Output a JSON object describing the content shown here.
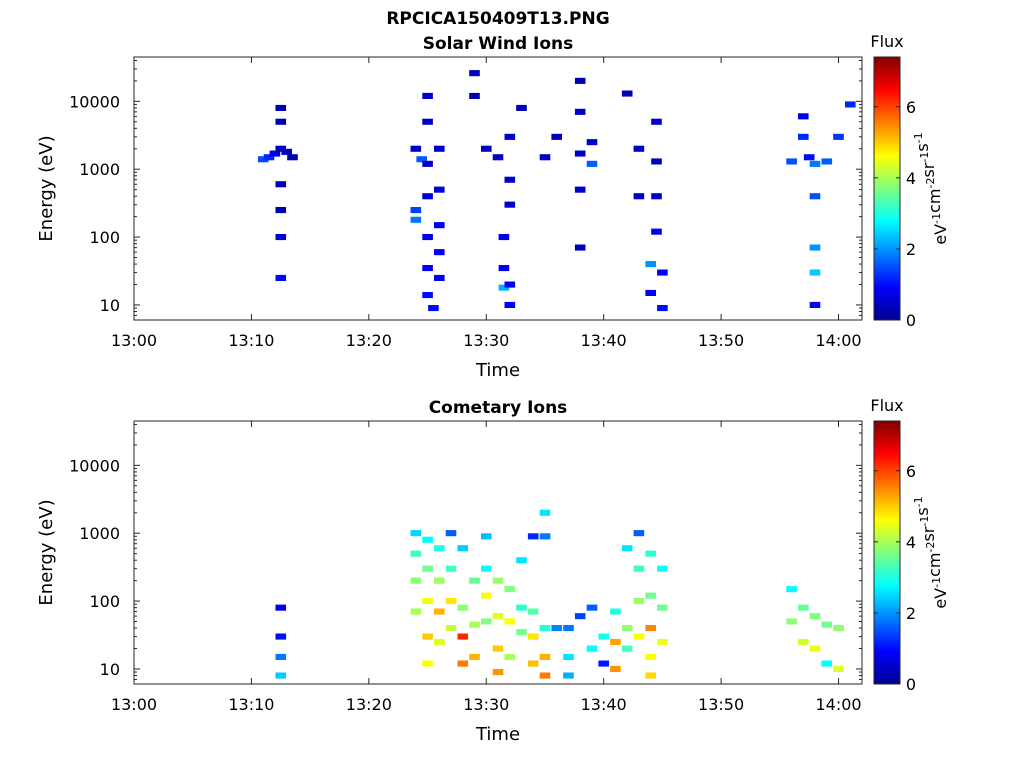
{
  "figure": {
    "title": "RPCICA150409T13.PNG"
  },
  "colormap": {
    "name": "jet",
    "colors": [
      "#00008f",
      "#0000ff",
      "#00ffff",
      "#ffff00",
      "#ff0000",
      "#800000"
    ]
  },
  "chart_data": [
    {
      "type": "heatmap",
      "title": "Solar Wind Ions",
      "xlabel": "Time",
      "ylabel": "Energy (eV)",
      "yscale": "log",
      "ylim": [
        6,
        45000
      ],
      "xlim": [
        "13:00",
        "14:02"
      ],
      "xticks": [
        "13:00",
        "13:10",
        "13:20",
        "13:30",
        "13:40",
        "13:50",
        "14:00"
      ],
      "yticks": [
        "10",
        "100",
        "1000",
        "10000"
      ],
      "colorbar": {
        "title": "Flux",
        "label": "eV-1 cm-2 sr-1 s-1",
        "ticks": [
          "0",
          "2",
          "4",
          "6"
        ],
        "range": [
          0,
          7.4
        ]
      },
      "cells": [
        [
          "13:11",
          1400,
          1.5
        ],
        [
          "13:11.5",
          1500,
          1.2
        ],
        [
          "13:12",
          1700,
          0.8
        ],
        [
          "13:12.5",
          8000,
          0.3
        ],
        [
          "13:12.5",
          5000,
          0.3
        ],
        [
          "13:12.5",
          2000,
          0.4
        ],
        [
          "13:12.5",
          600,
          0.4
        ],
        [
          "13:12.5",
          250,
          0.3
        ],
        [
          "13:12.5",
          100,
          0.6
        ],
        [
          "13:12.5",
          25,
          1.0
        ],
        [
          "13:13",
          1800,
          0.4
        ],
        [
          "13:13.5",
          1500,
          0.3
        ],
        [
          "13:24",
          2000,
          0.5
        ],
        [
          "13:24",
          250,
          1.4
        ],
        [
          "13:24",
          180,
          1.8
        ],
        [
          "13:24.5",
          1400,
          1.6
        ],
        [
          "13:25",
          12000,
          0.5
        ],
        [
          "13:25",
          5000,
          0.5
        ],
        [
          "13:25",
          1200,
          0.5
        ],
        [
          "13:25",
          400,
          0.6
        ],
        [
          "13:25",
          100,
          0.8
        ],
        [
          "13:25",
          35,
          0.9
        ],
        [
          "13:25",
          14,
          1.0
        ],
        [
          "13:25.5",
          9,
          1.0
        ],
        [
          "13:26",
          2000,
          0.5
        ],
        [
          "13:26",
          500,
          0.6
        ],
        [
          "13:26",
          150,
          0.8
        ],
        [
          "13:26",
          60,
          0.9
        ],
        [
          "13:26",
          25,
          0.8
        ],
        [
          "13:29",
          26000,
          0.4
        ],
        [
          "13:29",
          12000,
          0.3
        ],
        [
          "13:30",
          2000,
          0.4
        ],
        [
          "13:31",
          1500,
          0.4
        ],
        [
          "13:31.5",
          100,
          0.7
        ],
        [
          "13:31.5",
          35,
          0.8
        ],
        [
          "13:31.5",
          18,
          2.2
        ],
        [
          "13:32",
          20,
          0.8
        ],
        [
          "13:32",
          10,
          0.9
        ],
        [
          "13:32",
          3000,
          0.5
        ],
        [
          "13:32",
          700,
          0.5
        ],
        [
          "13:32",
          300,
          0.5
        ],
        [
          "13:33",
          8000,
          0.3
        ],
        [
          "13:35",
          1500,
          0.4
        ],
        [
          "13:36",
          3000,
          0.4
        ],
        [
          "13:38",
          20000,
          0.3
        ],
        [
          "13:38",
          7000,
          0.5
        ],
        [
          "13:38",
          1700,
          0.4
        ],
        [
          "13:38",
          500,
          0.5
        ],
        [
          "13:38",
          70,
          0.4
        ],
        [
          "13:39",
          2500,
          0.5
        ],
        [
          "13:39",
          1200,
          1.6
        ],
        [
          "13:42",
          13000,
          0.3
        ],
        [
          "13:43",
          2000,
          0.5
        ],
        [
          "13:43",
          400,
          0.5
        ],
        [
          "13:44",
          40,
          2.0
        ],
        [
          "13:44",
          15,
          0.9
        ],
        [
          "13:44.5",
          5000,
          0.5
        ],
        [
          "13:44.5",
          1300,
          0.4
        ],
        [
          "13:44.5",
          400,
          0.5
        ],
        [
          "13:44.5",
          120,
          0.8
        ],
        [
          "13:45",
          30,
          0.9
        ],
        [
          "13:45",
          9,
          1.0
        ],
        [
          "13:56",
          1300,
          1.5
        ],
        [
          "13:57",
          6000,
          0.7
        ],
        [
          "13:57",
          3000,
          1.2
        ],
        [
          "13:57.5",
          1500,
          1.0
        ],
        [
          "13:58",
          1200,
          1.8
        ],
        [
          "13:58",
          400,
          1.5
        ],
        [
          "13:58",
          70,
          2.0
        ],
        [
          "13:58",
          30,
          2.4
        ],
        [
          "13:58",
          10,
          0.9
        ],
        [
          "13:59",
          1300,
          1.6
        ],
        [
          "14:00",
          3000,
          1.3
        ],
        [
          "14:01",
          9000,
          1.2
        ]
      ]
    },
    {
      "type": "heatmap",
      "title": "Cometary Ions",
      "xlabel": "Time",
      "ylabel": "Energy (eV)",
      "yscale": "log",
      "ylim": [
        6,
        45000
      ],
      "xlim": [
        "13:00",
        "14:02"
      ],
      "xticks": [
        "13:00",
        "13:10",
        "13:20",
        "13:30",
        "13:40",
        "13:50",
        "14:00"
      ],
      "yticks": [
        "10",
        "100",
        "1000",
        "10000"
      ],
      "colorbar": {
        "title": "Flux",
        "label": "eV-1 cm-2 sr-1 s-1",
        "ticks": [
          "0",
          "2",
          "4",
          "6"
        ],
        "range": [
          0,
          7.4
        ]
      },
      "cells": [
        [
          "13:12.5",
          80,
          0.8
        ],
        [
          "13:12.5",
          30,
          1.0
        ],
        [
          "13:12.5",
          15,
          1.8
        ],
        [
          "13:12.5",
          8,
          2.4
        ],
        [
          "13:24",
          1000,
          2.5
        ],
        [
          "13:24",
          500,
          3.2
        ],
        [
          "13:24",
          200,
          3.8
        ],
        [
          "13:24",
          70,
          4.0
        ],
        [
          "13:25",
          800,
          2.8
        ],
        [
          "13:25",
          300,
          3.6
        ],
        [
          "13:25",
          100,
          4.5
        ],
        [
          "13:25",
          30,
          5.0
        ],
        [
          "13:25",
          12,
          4.6
        ],
        [
          "13:26",
          600,
          3.0
        ],
        [
          "13:26",
          200,
          3.9
        ],
        [
          "13:26",
          70,
          5.2
        ],
        [
          "13:26",
          25,
          4.4
        ],
        [
          "13:27",
          1000,
          1.6
        ],
        [
          "13:27",
          300,
          3.2
        ],
        [
          "13:27",
          100,
          4.8
        ],
        [
          "13:27",
          40,
          4.2
        ],
        [
          "13:28",
          600,
          2.4
        ],
        [
          "13:28",
          80,
          3.8
        ],
        [
          "13:28",
          30,
          6.2
        ],
        [
          "13:28",
          12,
          5.6
        ],
        [
          "13:29",
          200,
          3.5
        ],
        [
          "13:29",
          45,
          4.0
        ],
        [
          "13:29",
          15,
          5.2
        ],
        [
          "13:30",
          900,
          2.3
        ],
        [
          "13:30",
          300,
          2.8
        ],
        [
          "13:30",
          120,
          4.6
        ],
        [
          "13:30",
          50,
          3.7
        ],
        [
          "13:31",
          200,
          3.9
        ],
        [
          "13:31",
          60,
          4.4
        ],
        [
          "13:31",
          20,
          5.0
        ],
        [
          "13:31",
          9,
          5.4
        ],
        [
          "13:32",
          150,
          3.7
        ],
        [
          "13:32",
          50,
          4.6
        ],
        [
          "13:32",
          15,
          4.0
        ],
        [
          "13:33",
          400,
          2.6
        ],
        [
          "13:33",
          80,
          3.1
        ],
        [
          "13:33",
          35,
          3.6
        ],
        [
          "13:34",
          900,
          1.2
        ],
        [
          "13:34",
          70,
          3.4
        ],
        [
          "13:34",
          30,
          4.8
        ],
        [
          "13:34",
          12,
          5.1
        ],
        [
          "13:35",
          2000,
          2.6
        ],
        [
          "13:35",
          900,
          1.8
        ],
        [
          "13:35",
          40,
          3.0
        ],
        [
          "13:35",
          15,
          5.2
        ],
        [
          "13:35",
          8,
          5.6
        ],
        [
          "13:36",
          40,
          1.9
        ],
        [
          "13:37",
          40,
          1.8
        ],
        [
          "13:37",
          15,
          2.6
        ],
        [
          "13:37",
          8,
          2.2
        ],
        [
          "13:38",
          60,
          1.4
        ],
        [
          "13:39",
          80,
          1.6
        ],
        [
          "13:39",
          20,
          2.8
        ],
        [
          "13:40",
          30,
          2.9
        ],
        [
          "13:40",
          12,
          1.1
        ],
        [
          "13:41",
          70,
          3.0
        ],
        [
          "13:41",
          25,
          5.3
        ],
        [
          "13:41",
          10,
          5.4
        ],
        [
          "13:42",
          600,
          2.6
        ],
        [
          "13:42",
          40,
          3.8
        ],
        [
          "13:42",
          20,
          3.3
        ],
        [
          "13:43",
          1000,
          1.6
        ],
        [
          "13:43",
          300,
          3.2
        ],
        [
          "13:43",
          100,
          3.9
        ],
        [
          "13:43",
          30,
          4.6
        ],
        [
          "13:44",
          500,
          3.1
        ],
        [
          "13:44",
          120,
          3.6
        ],
        [
          "13:44",
          40,
          5.5
        ],
        [
          "13:44",
          15,
          4.6
        ],
        [
          "13:44",
          8,
          4.9
        ],
        [
          "13:45",
          300,
          2.8
        ],
        [
          "13:45",
          80,
          3.6
        ],
        [
          "13:45",
          25,
          4.5
        ],
        [
          "13:56",
          150,
          2.8
        ],
        [
          "13:56",
          50,
          3.8
        ],
        [
          "13:57",
          80,
          3.5
        ],
        [
          "13:57",
          25,
          4.3
        ],
        [
          "13:58",
          60,
          3.7
        ],
        [
          "13:58",
          20,
          4.5
        ],
        [
          "13:59",
          45,
          3.6
        ],
        [
          "13:59",
          12,
          2.8
        ],
        [
          "14:00",
          40,
          3.8
        ],
        [
          "14:00",
          10,
          4.4
        ]
      ]
    }
  ]
}
